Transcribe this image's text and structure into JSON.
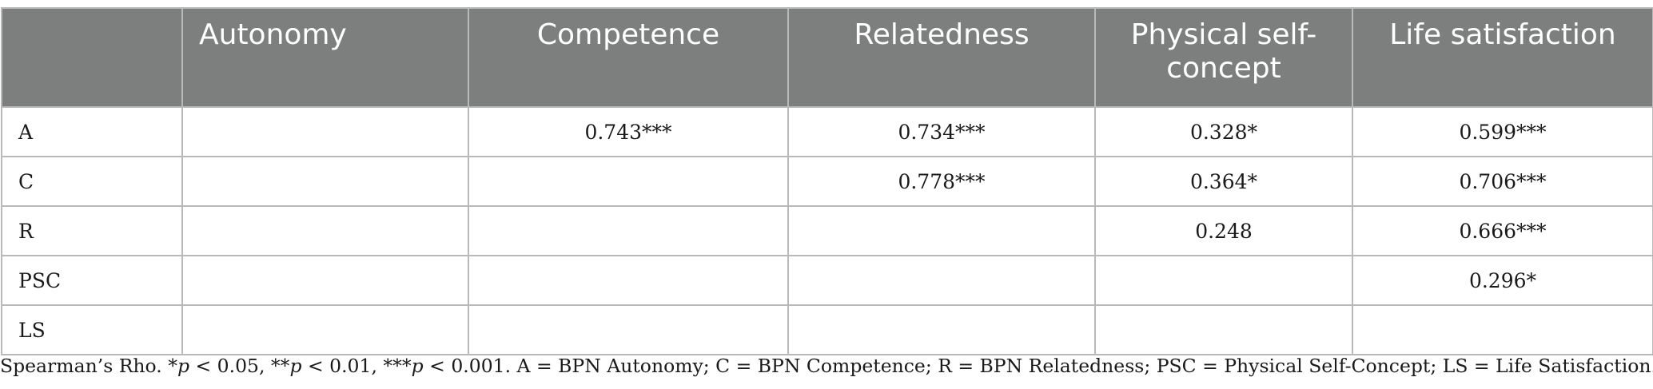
{
  "table": {
    "headers": [
      "",
      "Autonomy",
      "Competence",
      "Relatedness",
      "Physical self-concept",
      "Life satisfaction"
    ],
    "rows": [
      {
        "label": "A",
        "cells": [
          "",
          "0.743***",
          "0.734***",
          "0.328*",
          "0.599***"
        ]
      },
      {
        "label": "C",
        "cells": [
          "",
          "",
          "0.778***",
          "0.364*",
          "0.706***"
        ]
      },
      {
        "label": "R",
        "cells": [
          "",
          "",
          "",
          "0.248",
          "0.666***"
        ]
      },
      {
        "label": "PSC",
        "cells": [
          "",
          "",
          "",
          "",
          "0.296*"
        ]
      },
      {
        "label": "LS",
        "cells": [
          "",
          "",
          "",
          "",
          ""
        ]
      }
    ]
  },
  "footnote": {
    "lead": "Spearman’s Rho. *",
    "p1": "p",
    "t1": " < 0.05, **",
    "p2": "p",
    "t2": " < 0.01, ***",
    "p3": "p",
    "t3": " < 0.001. A = BPN Autonomy; C = BPN Competence; R = BPN Relatedness; PSC = Physical Self-Concept; LS = Life Satisfaction."
  }
}
